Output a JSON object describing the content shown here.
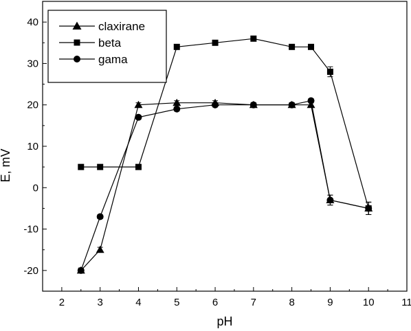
{
  "chart_data": {
    "type": "line",
    "xlabel": "pH",
    "ylabel": "E, mV",
    "xlim": [
      1.5,
      11
    ],
    "ylim": [
      -25,
      45
    ],
    "xticks": [
      2,
      3,
      4,
      5,
      6,
      7,
      8,
      9,
      10,
      11
    ],
    "yticks": [
      -20,
      -10,
      0,
      10,
      20,
      30,
      40
    ],
    "xtick_labels": [
      "2",
      "3",
      "4",
      "5",
      "6",
      "7",
      "8",
      "9",
      "10",
      "11"
    ],
    "ytick_labels": [
      "-20",
      "-10",
      "0",
      "10",
      "20",
      "30",
      "40"
    ],
    "grid": false,
    "legend_position": "top-left",
    "series": [
      {
        "name": "claxirane",
        "marker": "triangle",
        "x": [
          2.5,
          3,
          4,
          5,
          6,
          7,
          8,
          8.5,
          9,
          10
        ],
        "y": [
          -20,
          -15,
          20,
          20.5,
          20.5,
          20,
          20,
          20,
          -3,
          -5
        ],
        "err": [
          0.6,
          0.6,
          0.5,
          0.5,
          0.5,
          0.5,
          0.5,
          0.5,
          1.2,
          1.5
        ]
      },
      {
        "name": "beta",
        "marker": "square",
        "x": [
          2.5,
          3,
          4,
          5,
          6,
          7,
          8,
          8.5,
          9,
          10
        ],
        "y": [
          5,
          5,
          5,
          34,
          35,
          36,
          34,
          34,
          28,
          -5
        ],
        "err": [
          0,
          0,
          0,
          0,
          0,
          0,
          0,
          0,
          1.2,
          1.5
        ]
      },
      {
        "name": "gama",
        "marker": "circle",
        "x": [
          2.5,
          3,
          4,
          5,
          6,
          7,
          8,
          8.5,
          9,
          10
        ],
        "y": [
          -20,
          -7,
          17,
          19,
          20,
          20,
          20,
          21,
          -3,
          -5
        ],
        "err": [
          0.5,
          0.5,
          0.5,
          0.5,
          0.5,
          0.5,
          0.5,
          0.5,
          1.2,
          1.5
        ]
      }
    ]
  }
}
